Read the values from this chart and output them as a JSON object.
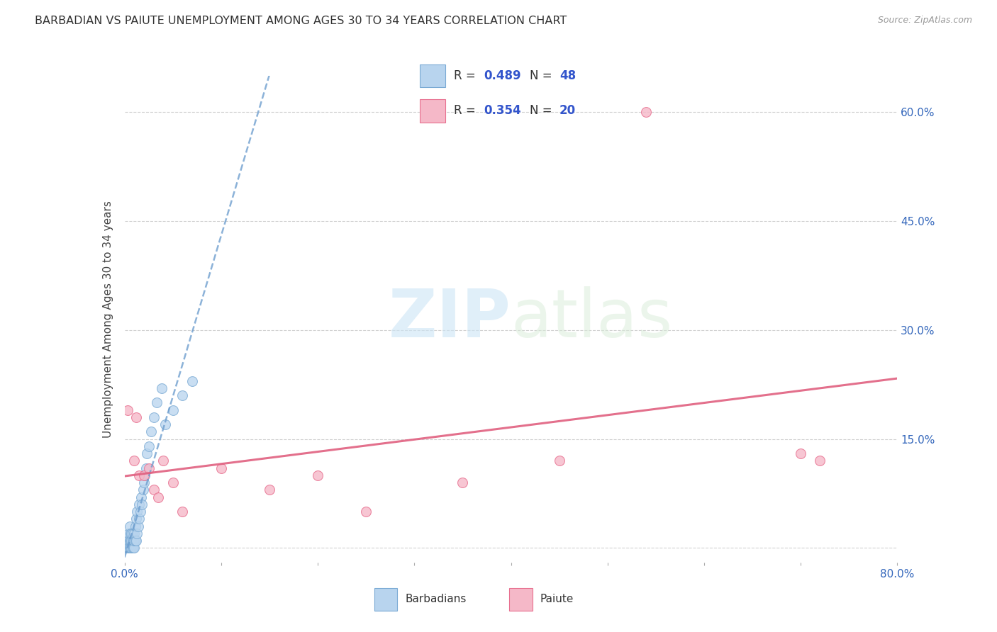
{
  "title": "BARBADIAN VS PAIUTE UNEMPLOYMENT AMONG AGES 30 TO 34 YEARS CORRELATION CHART",
  "source": "Source: ZipAtlas.com",
  "ylabel": "Unemployment Among Ages 30 to 34 years",
  "xlim": [
    0.0,
    0.8
  ],
  "ylim": [
    -0.02,
    0.65
  ],
  "xticks": [
    0.0,
    0.1,
    0.2,
    0.3,
    0.4,
    0.5,
    0.6,
    0.7,
    0.8
  ],
  "xticklabels": [
    "0.0%",
    "",
    "",
    "",
    "",
    "",
    "",
    "",
    "80.0%"
  ],
  "ytick_positions": [
    0.0,
    0.15,
    0.3,
    0.45,
    0.6
  ],
  "yticklabels_right": [
    "",
    "15.0%",
    "30.0%",
    "45.0%",
    "60.0%"
  ],
  "grid_color": "#d0d0d0",
  "background_color": "#ffffff",
  "barbadian_color": "#b8d4ee",
  "paiute_color": "#f5b8c8",
  "barbadian_edge_color": "#7aaad4",
  "paiute_edge_color": "#e87090",
  "trendline_barbadian_color": "#6699cc",
  "trendline_paiute_color": "#e06080",
  "R_barbadian": 0.489,
  "N_barbadian": 48,
  "R_paiute": 0.354,
  "N_paiute": 20,
  "legend_label_barbadian": "Barbadians",
  "legend_label_paiute": "Paiute",
  "watermark_zip": "ZIP",
  "watermark_atlas": "atlas",
  "marker_size": 100,
  "barbadian_x": [
    0.002,
    0.003,
    0.003,
    0.004,
    0.004,
    0.005,
    0.005,
    0.005,
    0.006,
    0.006,
    0.006,
    0.007,
    0.007,
    0.007,
    0.008,
    0.008,
    0.008,
    0.009,
    0.009,
    0.01,
    0.01,
    0.01,
    0.011,
    0.011,
    0.012,
    0.012,
    0.013,
    0.013,
    0.014,
    0.015,
    0.015,
    0.016,
    0.017,
    0.018,
    0.019,
    0.02,
    0.021,
    0.022,
    0.023,
    0.025,
    0.027,
    0.03,
    0.033,
    0.038,
    0.042,
    0.05,
    0.06,
    0.07
  ],
  "barbadian_y": [
    0.0,
    0.0,
    0.01,
    0.0,
    0.02,
    0.0,
    0.01,
    0.03,
    0.0,
    0.01,
    0.02,
    0.0,
    0.01,
    0.02,
    0.0,
    0.01,
    0.02,
    0.0,
    0.01,
    0.0,
    0.01,
    0.02,
    0.01,
    0.03,
    0.01,
    0.04,
    0.02,
    0.05,
    0.03,
    0.04,
    0.06,
    0.05,
    0.07,
    0.06,
    0.08,
    0.09,
    0.1,
    0.11,
    0.13,
    0.14,
    0.16,
    0.18,
    0.2,
    0.22,
    0.17,
    0.19,
    0.21,
    0.23
  ],
  "paiute_x": [
    0.003,
    0.01,
    0.012,
    0.015,
    0.02,
    0.025,
    0.03,
    0.035,
    0.04,
    0.05,
    0.06,
    0.1,
    0.15,
    0.2,
    0.25,
    0.35,
    0.45,
    0.54,
    0.7,
    0.72
  ],
  "paiute_y": [
    0.19,
    0.12,
    0.18,
    0.1,
    0.1,
    0.11,
    0.08,
    0.07,
    0.12,
    0.09,
    0.05,
    0.11,
    0.08,
    0.1,
    0.05,
    0.09,
    0.12,
    0.6,
    0.13,
    0.12
  ]
}
